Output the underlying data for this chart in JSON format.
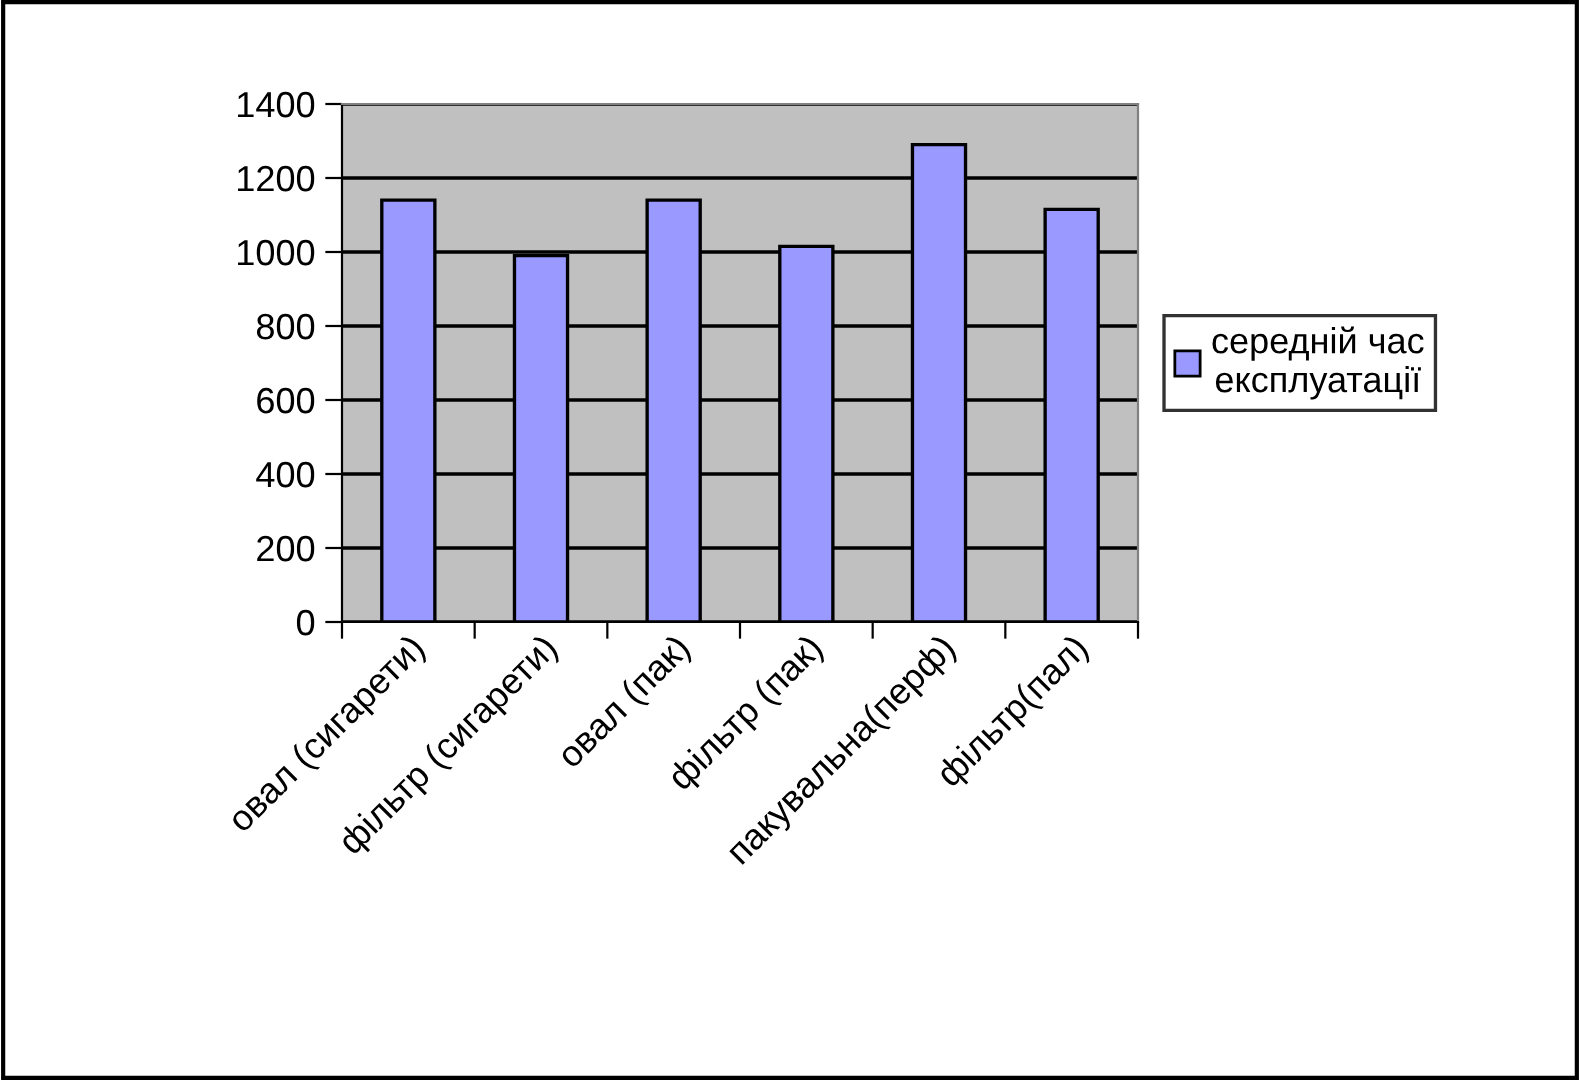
{
  "chart_data": {
    "type": "bar",
    "categories": [
      "овал (сигарети)",
      "фільтр (сигарети)",
      "овал (пак)",
      "фільтр (пак)",
      "пакувальна(перф)",
      "фільтр(пал)"
    ],
    "series": [
      {
        "name": "середній час експлуатації",
        "color": "#9999ff",
        "values": [
          1140,
          990,
          1140,
          1015,
          1290,
          1115
        ]
      }
    ],
    "ylim": [
      0,
      1400
    ],
    "yticks": [
      0,
      200,
      400,
      600,
      800,
      1000,
      1200,
      1400
    ],
    "grid": "y",
    "legend": "right"
  }
}
